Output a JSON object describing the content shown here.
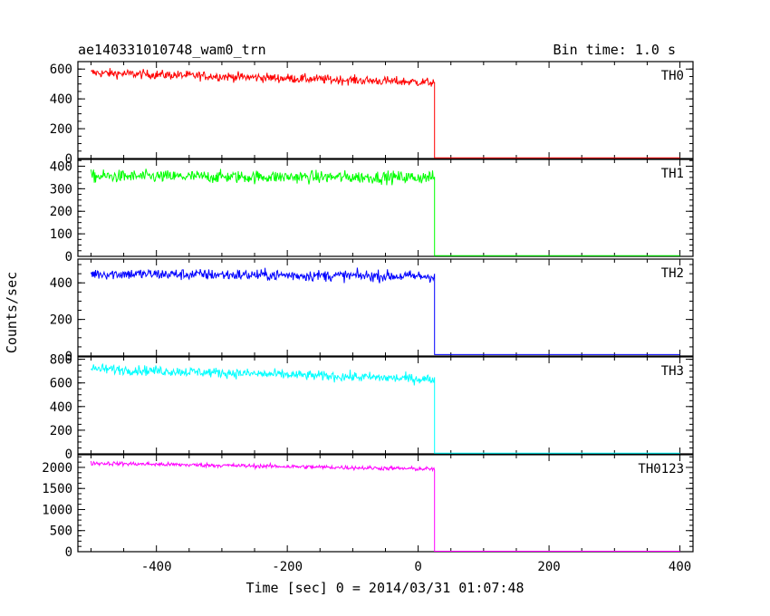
{
  "chart_data": {
    "type": "line",
    "title": "ae140331010748_wam0_trn",
    "bin_label": "Bin time: 1.0 s",
    "xlabel": "Time [sec] 0 = 2014/03/31 01:07:48",
    "ylabel": "Counts/sec",
    "xlim": [
      -520,
      420
    ],
    "x_ticks": [
      -400,
      -200,
      0,
      200,
      400
    ],
    "signal_start": -500,
    "drop_time": 25,
    "series": [
      {
        "name": "TH0",
        "color": "#ff0000",
        "ylim": [
          0,
          650
        ],
        "y_ticks": [
          0,
          200,
          400,
          600
        ],
        "level_start": 575,
        "level_end": 510,
        "noise": 22,
        "after": 5
      },
      {
        "name": "TH1",
        "color": "#00ff00",
        "ylim": [
          0,
          430
        ],
        "y_ticks": [
          0,
          100,
          200,
          300,
          400
        ],
        "level_start": 355,
        "level_end": 350,
        "noise": 20,
        "after": 3
      },
      {
        "name": "TH2",
        "color": "#0000ff",
        "ylim": [
          0,
          530
        ],
        "y_ticks": [
          0,
          200,
          400
        ],
        "level_start": 450,
        "level_end": 435,
        "noise": 22,
        "after": 8
      },
      {
        "name": "TH3",
        "color": "#00ffff",
        "ylim": [
          0,
          820
        ],
        "y_ticks": [
          0,
          200,
          400,
          600,
          800
        ],
        "level_start": 720,
        "level_end": 630,
        "noise": 30,
        "after": 5
      },
      {
        "name": "TH0123",
        "color": "#ff00ff",
        "ylim": [
          0,
          2300
        ],
        "y_ticks": [
          0,
          500,
          1000,
          1500,
          2000
        ],
        "level_start": 2100,
        "level_end": 1960,
        "noise": 35,
        "after": 10
      }
    ]
  }
}
